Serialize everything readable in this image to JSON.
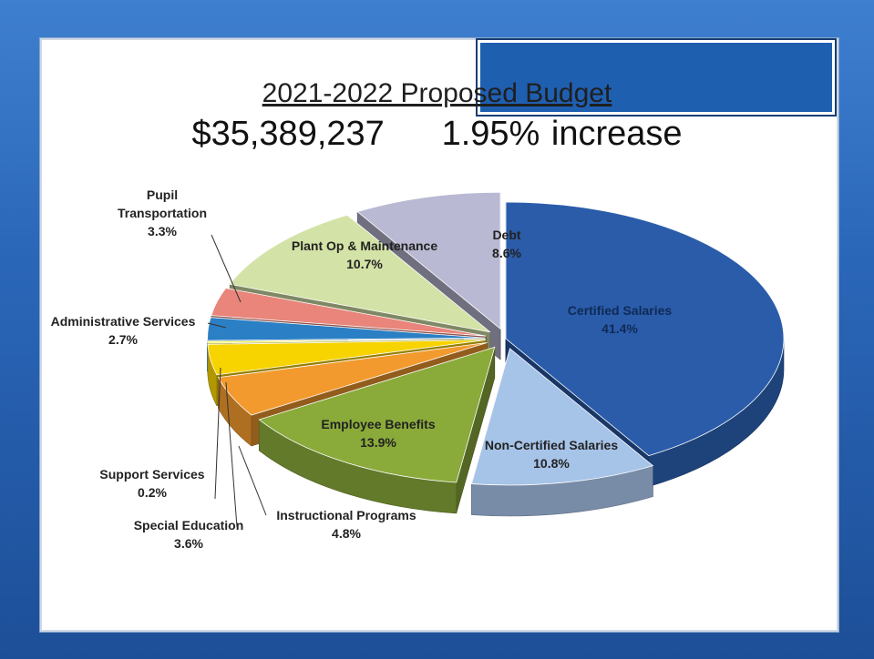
{
  "slide": {
    "title": "2021-2022 Proposed Budget",
    "total": "$35,389,237",
    "increase": "1.95% increase"
  },
  "chart_data": {
    "type": "pie",
    "title": "2021-2022 Proposed Budget",
    "slices": [
      {
        "label": "Certified Salaries",
        "value": 41.4,
        "pct_text": "41.4%",
        "color": "#2a5caa"
      },
      {
        "label": "Non-Certified Salaries",
        "value": 10.8,
        "pct_text": "10.8%",
        "color": "#a6c3e8"
      },
      {
        "label": "Employee Benefits",
        "value": 13.9,
        "pct_text": "13.9%",
        "color": "#8aaa3a"
      },
      {
        "label": "Instructional Programs",
        "value": 4.8,
        "pct_text": "4.8%",
        "color": "#f39a2e"
      },
      {
        "label": "Special Education",
        "value": 3.6,
        "pct_text": "3.6%",
        "color": "#f7d300"
      },
      {
        "label": "Support Services",
        "value": 0.2,
        "pct_text": "0.2%",
        "color": "#ffff33"
      },
      {
        "label": "Administrative Services",
        "value": 2.7,
        "pct_text": "2.7%",
        "color": "#2b7fc4"
      },
      {
        "label": "Pupil Transportation",
        "value": 3.3,
        "pct_text": "3.3%",
        "color": "#e9857a"
      },
      {
        "label": "Plant Op & Maintenance",
        "value": 10.7,
        "pct_text": "10.7%",
        "color": "#d3e2a6"
      },
      {
        "label": "Debt",
        "value": 8.6,
        "pct_text": "8.6%",
        "color": "#b9b9d3"
      }
    ]
  }
}
